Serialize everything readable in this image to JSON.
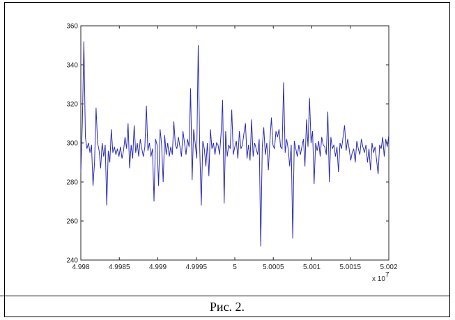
{
  "caption": "Рис. 2.",
  "chart_data": {
    "type": "line",
    "title": "",
    "xlabel": "",
    "ylabel": "",
    "xlim": [
      49980000,
      50020000
    ],
    "ylim": [
      240,
      360
    ],
    "x_exponent_label": "x 10",
    "x_exponent_power": "7",
    "x_tick_labels": [
      "4.998",
      "4.9985",
      "4.999",
      "4.9995",
      "5",
      "5.0005",
      "5.001",
      "5.0015",
      "5.002"
    ],
    "y_tick_labels": [
      "240",
      "260",
      "280",
      "300",
      "320",
      "340",
      "360"
    ],
    "grid": false,
    "line_color": "#2b2bb5",
    "series": [
      {
        "y": [
          285,
          310,
          352,
          303,
          297,
          300,
          295,
          299,
          278,
          290,
          318,
          300,
          296,
          287,
          300,
          293,
          299,
          268,
          296,
          290,
          307,
          295,
          298,
          294,
          297,
          293,
          298,
          292,
          296,
          303,
          297,
          310,
          287,
          299,
          292,
          309,
          295,
          300,
          293,
          302,
          297,
          293,
          298,
          319,
          296,
          300,
          293,
          297,
          270,
          302,
          299,
          278,
          307,
          299,
          280,
          304,
          294,
          300,
          293,
          298,
          294,
          311,
          299,
          297,
          303,
          298,
          293,
          306,
          300,
          294,
          302,
          298,
          328,
          281,
          307,
          300,
          292,
          350,
          297,
          268,
          301,
          297,
          288,
          300,
          283,
          307,
          297,
          300,
          294,
          300,
          299,
          294,
          305,
          322,
          269,
          306,
          293,
          299,
          297,
          317,
          294,
          298,
          301,
          292,
          306,
          297,
          299,
          305,
          310,
          292,
          299,
          291,
          312,
          293,
          300,
          297,
          294,
          302,
          247,
          298,
          308,
          294,
          300,
          286,
          301,
          313,
          299,
          297,
          306,
          303,
          307,
          298,
          297,
          331,
          295,
          302,
          297,
          288,
          299,
          251,
          301,
          297,
          293,
          299,
          294,
          298,
          302,
          288,
          312,
          298,
          323,
          300,
          306,
          279,
          300,
          296,
          301,
          293,
          303,
          299,
          298,
          294,
          316,
          280,
          303,
          297,
          299,
          293,
          298,
          285,
          300,
          297,
          303,
          309,
          296,
          302,
          297,
          291,
          295,
          297,
          290,
          301,
          297,
          294,
          302,
          298,
          295,
          299,
          290,
          297,
          286,
          300,
          295,
          298,
          291,
          284,
          299,
          297,
          303,
          293,
          302,
          298,
          304
        ]
      }
    ]
  }
}
